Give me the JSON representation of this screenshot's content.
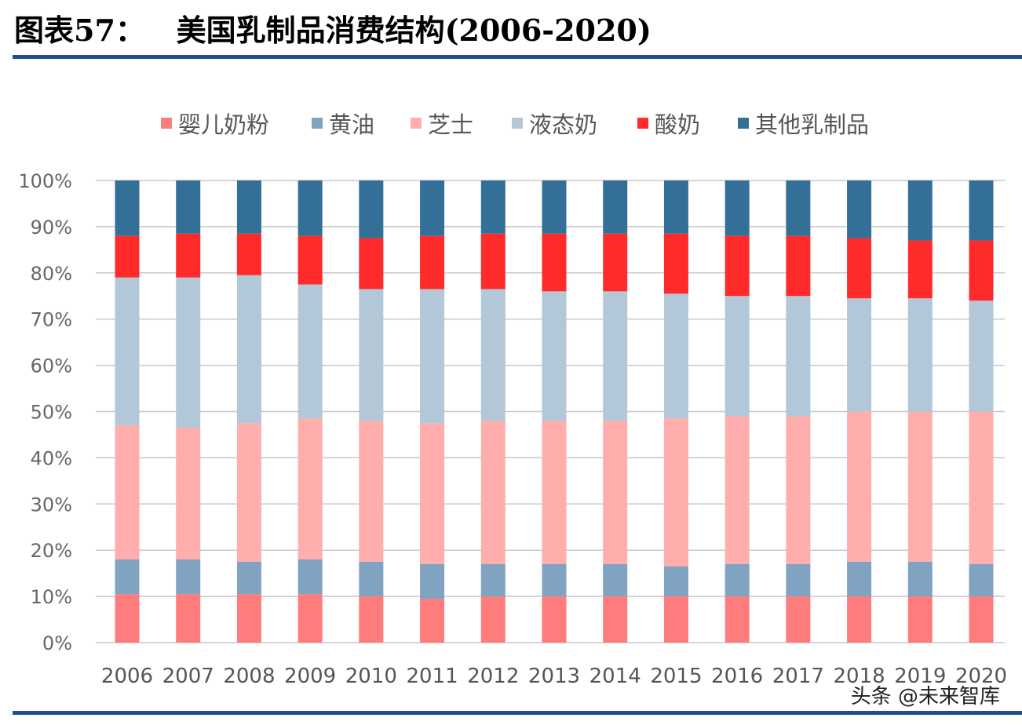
{
  "header": {
    "title": "图表57：   美国乳制品消费结构(2006-2020)"
  },
  "watermark": "头条 @未来智库",
  "chart_data": {
    "type": "bar",
    "stacked": "percent",
    "title": "",
    "xlabel": "",
    "ylabel": "",
    "ylim": [
      0,
      100
    ],
    "yticks": [
      "0%",
      "10%",
      "20%",
      "30%",
      "40%",
      "50%",
      "60%",
      "70%",
      "80%",
      "90%",
      "100%"
    ],
    "grid": true,
    "legend_position": "top",
    "categories": [
      "2006",
      "2007",
      "2008",
      "2009",
      "2010",
      "2011",
      "2012",
      "2013",
      "2014",
      "2015",
      "2016",
      "2017",
      "2018",
      "2019",
      "2020"
    ],
    "series": [
      {
        "name": "婴儿奶粉",
        "color": "#ff7c7c",
        "values": [
          10.5,
          10.5,
          10.5,
          10.5,
          10,
          9.5,
          10,
          10,
          10,
          10,
          10,
          10,
          10,
          10,
          10
        ]
      },
      {
        "name": "黄油",
        "color": "#7fa3c0",
        "values": [
          7.5,
          7.5,
          7,
          7.5,
          7.5,
          7.5,
          7,
          7,
          7,
          6.5,
          7,
          7,
          7.5,
          7.5,
          7
        ]
      },
      {
        "name": "芝士",
        "color": "#ffadad",
        "values": [
          29,
          28.5,
          30,
          30.5,
          30.5,
          30.5,
          31,
          31,
          31,
          32,
          32,
          32,
          32.5,
          32.5,
          33
        ]
      },
      {
        "name": "液态奶",
        "color": "#b2c7d7",
        "values": [
          32,
          32.5,
          32,
          29,
          28.5,
          29,
          28.5,
          28,
          28,
          27,
          26,
          26,
          24.5,
          24.5,
          24
        ]
      },
      {
        "name": "酸奶",
        "color": "#ff2b2b",
        "values": [
          9,
          9.5,
          9,
          10.5,
          11,
          11.5,
          12,
          12.5,
          12.5,
          13,
          13,
          13,
          13,
          12.5,
          13
        ]
      },
      {
        "name": "其他乳制品",
        "color": "#346f97",
        "values": [
          12,
          11.5,
          11.5,
          12,
          12.5,
          12,
          11.5,
          11.5,
          11.5,
          11.5,
          12,
          12,
          12.5,
          13,
          13
        ]
      }
    ]
  }
}
